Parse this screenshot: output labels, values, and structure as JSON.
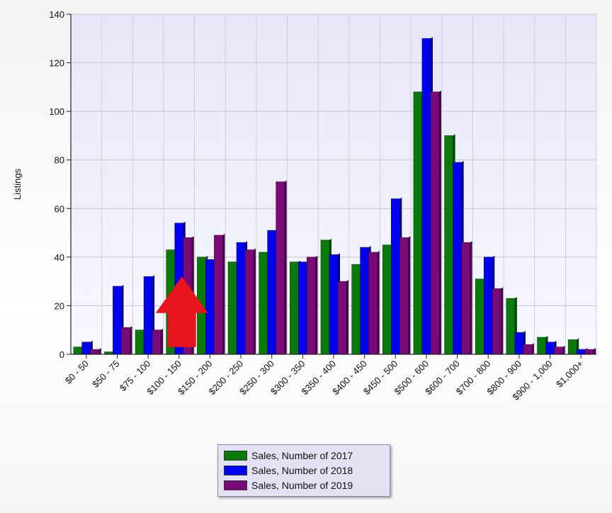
{
  "chart_data": {
    "type": "bar",
    "ylabel": "Listings",
    "xlabel": "",
    "ylim": [
      0,
      140
    ],
    "yticks": [
      0,
      20,
      40,
      60,
      80,
      100,
      120,
      140
    ],
    "grid": true,
    "legend_position": "bottom-center",
    "categories": [
      "$0 - 50",
      "$50 - 75",
      "$75 - 100",
      "$100 - 150",
      "$150 - 200",
      "$200 - 250",
      "$250 - 300",
      "$300 - 350",
      "$350 - 400",
      "$400 - 450",
      "$450 - 500",
      "$500 - 600",
      "$600 - 700",
      "$700 - 800",
      "$800 - 900",
      "$900 - 1,000",
      "$1,000+"
    ],
    "series": [
      {
        "name": "Sales, Number of 2017",
        "color": "#0a7a0a",
        "values": [
          3,
          1,
          10,
          43,
          40,
          38,
          42,
          38,
          47,
          37,
          45,
          108,
          90,
          31,
          23,
          7,
          6
        ]
      },
      {
        "name": "Sales, Number of 2018",
        "color": "#0000f0",
        "values": [
          5,
          28,
          32,
          54,
          39,
          46,
          51,
          38,
          41,
          44,
          64,
          130,
          79,
          40,
          9,
          5,
          2
        ]
      },
      {
        "name": "Sales, Number of 2019",
        "color": "#7a0a7a",
        "values": [
          2,
          11,
          10,
          48,
          49,
          43,
          71,
          40,
          30,
          42,
          48,
          108,
          46,
          27,
          4,
          3,
          2
        ]
      }
    ],
    "annotation": {
      "type": "up-arrow",
      "color": "#e8141e",
      "category": "$100 - 150"
    }
  }
}
